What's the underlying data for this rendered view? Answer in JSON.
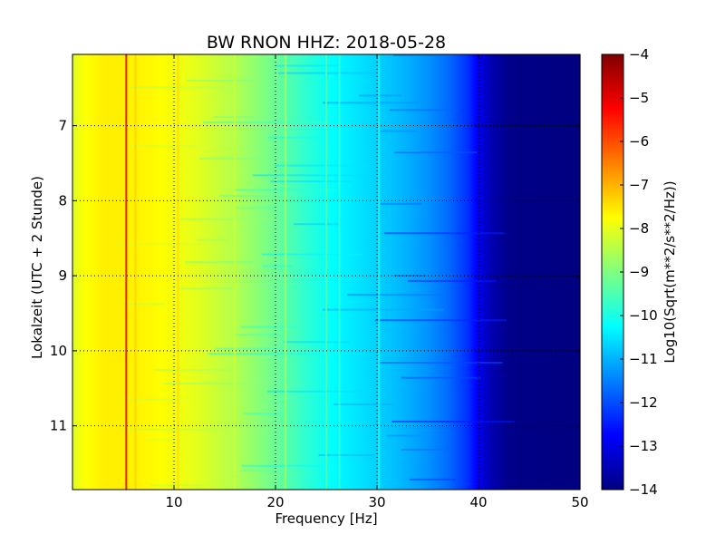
{
  "chart_data": {
    "type": "heatmap",
    "title": "BW RNON HHZ: 2018-05-28",
    "xlabel": "Frequency [Hz]",
    "ylabel": "Lokalzeit (UTC + 2 Stunde)",
    "xlim": [
      0,
      50
    ],
    "ylim": [
      11.85,
      6.05
    ],
    "y_inverted": true,
    "grid": true,
    "x_ticks": [
      10,
      20,
      30,
      40,
      50
    ],
    "x_tick_labels": [
      "10",
      "20",
      "30",
      "40",
      "50"
    ],
    "y_ticks": [
      7,
      8,
      9,
      10,
      11
    ],
    "y_tick_labels": [
      "7",
      "8",
      "9",
      "10",
      "11"
    ],
    "colormap": "jet",
    "colorbar": {
      "label": "Log10(Sqrt(m**2/s**2/Hz))",
      "range": [
        -14,
        -4
      ],
      "ticks": [
        -4,
        -5,
        -6,
        -7,
        -8,
        -9,
        -10,
        -11,
        -12,
        -13,
        -14
      ],
      "tick_labels": [
        "−4",
        "−5",
        "−6",
        "−7",
        "−8",
        "−9",
        "−10",
        "−11",
        "−12",
        "−13",
        "−14"
      ]
    },
    "frequency_profile": {
      "frequency_hz": [
        0,
        1,
        3,
        5,
        8,
        12,
        16,
        20,
        23,
        26,
        29,
        32,
        35,
        37,
        39,
        40,
        41,
        42,
        43,
        45,
        50
      ],
      "value": [
        -8.1,
        -7.8,
        -7.6,
        -7.6,
        -7.7,
        -8.0,
        -8.5,
        -9.2,
        -9.8,
        -10.3,
        -10.6,
        -10.9,
        -11.3,
        -11.7,
        -12.3,
        -12.9,
        -13.4,
        -13.7,
        -13.9,
        -13.95,
        -14.0
      ]
    },
    "spectral_lines": [
      {
        "frequency_hz": 5.3,
        "value": -5.0
      },
      {
        "frequency_hz": 6.2,
        "value": -7.3
      },
      {
        "frequency_hz": 10.4,
        "value": -7.4
      },
      {
        "frequency_hz": 16.0,
        "value": -8.2
      },
      {
        "frequency_hz": 21.0,
        "value": -8.6
      },
      {
        "frequency_hz": 25.0,
        "value": -9.4
      },
      {
        "frequency_hz": 26.3,
        "value": -9.8
      },
      {
        "frequency_hz": 30.2,
        "value": -10.1
      }
    ]
  }
}
